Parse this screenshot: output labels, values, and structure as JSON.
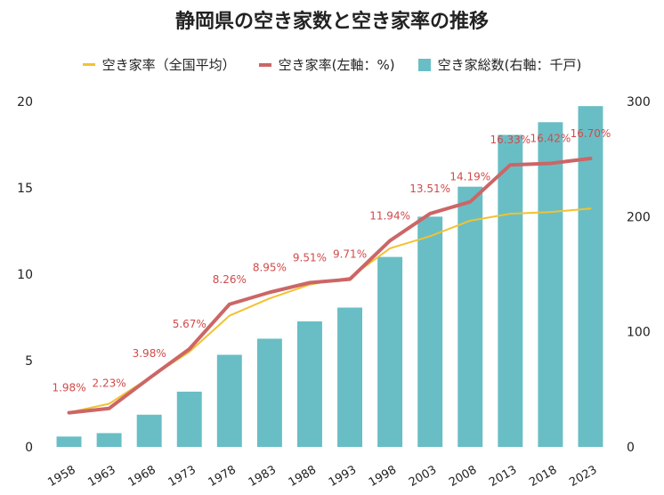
{
  "chart_data": {
    "type": "bar+line",
    "title": "静岡県の空き家数と空き家率の推移",
    "categories": [
      "1958",
      "1963",
      "1968",
      "1973",
      "1978",
      "1983",
      "1988",
      "1993",
      "1998",
      "2003",
      "2008",
      "2013",
      "2018",
      "2023"
    ],
    "legend_position": "top",
    "grid": false,
    "y_left": {
      "range": [
        0,
        20
      ],
      "ticks": [
        0,
        5,
        10,
        15,
        20
      ]
    },
    "y_right": {
      "range": [
        0,
        300
      ],
      "ticks": [
        0,
        100,
        200,
        300
      ]
    },
    "series": [
      {
        "name": "空き家率（全国平均）",
        "type": "line",
        "axis": "left",
        "color": "#f1c232",
        "values": [
          2.0,
          2.5,
          4.0,
          5.5,
          7.6,
          8.6,
          9.4,
          9.8,
          11.5,
          12.2,
          13.1,
          13.5,
          13.6,
          13.8
        ]
      },
      {
        "name": "空き家率(左軸：%)",
        "type": "line",
        "axis": "left",
        "color": "#cc6666",
        "values": [
          1.98,
          2.23,
          3.98,
          5.67,
          8.26,
          8.95,
          9.51,
          9.71,
          11.94,
          13.51,
          14.19,
          16.33,
          16.42,
          16.7
        ],
        "labels": [
          "1.98%",
          "2.23%",
          "3.98%",
          "5.67%",
          "8.26%",
          "8.95%",
          "9.51%",
          "9.71%",
          "11.94%",
          "13.51%",
          "14.19%",
          "16.33%",
          "16.42%",
          "16.70%"
        ]
      },
      {
        "name": "空き家総数(右軸：千戸)",
        "type": "bar",
        "axis": "right",
        "color": "#69bec5",
        "values": [
          9,
          12,
          28,
          48,
          80,
          94,
          109,
          121,
          165,
          200,
          226,
          271,
          282,
          296
        ]
      }
    ]
  }
}
